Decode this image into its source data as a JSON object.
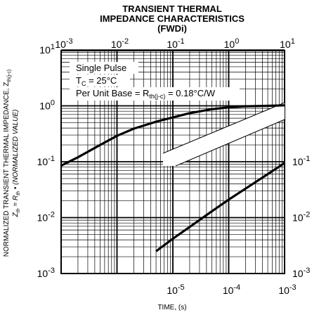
{
  "chart_data": {
    "type": "line",
    "title_lines": [
      "TRANSIENT THERMAL",
      "IMPEDANCE CHARACTERISTICS",
      "(FWDi)"
    ],
    "xlabel": "TIME, (s)",
    "ylabel_line1": "NORMALIZED TRANSIENT THERMAL IMPEDANCE, Z",
    "ylabel_line1_sub": "th(j-c)",
    "ylabel_line2": "Z",
    "ylabel_line2_sub": "th",
    "ylabel_line2_rest": " = R",
    "ylabel_line2_sub2": "th",
    "ylabel_line2_tail": " • (NORMALIZED VALUE)",
    "annotations": {
      "pulse": "Single Pulse",
      "tc_prefix": "T",
      "tc_sub": "C",
      "tc_rest": " = 25°C",
      "base_prefix": "Per Unit Base = R",
      "base_sub": "th(j-c)",
      "base_rest": " = 0.18°C/W"
    },
    "top_axis": {
      "scale": "log",
      "range": [
        0.001,
        10
      ],
      "tick_values": [
        0.001,
        0.01,
        0.1,
        1,
        10
      ],
      "tick_labels": [
        [
          "10",
          "-3"
        ],
        [
          "10",
          "-2"
        ],
        [
          "10",
          "-1"
        ],
        [
          "10",
          "0"
        ],
        [
          "10",
          "1"
        ]
      ]
    },
    "bottom_axis": {
      "scale": "log",
      "range": [
        1e-06,
        0.001
      ],
      "tick_values": [
        1e-05,
        0.0001,
        0.001
      ],
      "tick_labels": [
        [
          "10",
          "-5"
        ],
        [
          "10",
          "-4"
        ],
        [
          "10",
          "-3"
        ]
      ]
    },
    "left_axis": {
      "scale": "log",
      "range": [
        0.001,
        10
      ],
      "tick_values": [
        10,
        1,
        0.1,
        0.01,
        0.001
      ],
      "tick_labels": [
        [
          "10",
          "1"
        ],
        [
          "10",
          "0"
        ],
        [
          "10",
          "-1"
        ],
        [
          "10",
          "-2"
        ],
        [
          "10",
          "-3"
        ]
      ]
    },
    "right_axis": {
      "scale": "log",
      "range": [
        0.001,
        0.1
      ],
      "tick_values": [
        0.1,
        0.01,
        0.001
      ],
      "tick_labels": [
        [
          "10",
          "-1"
        ],
        [
          "10",
          "-2"
        ],
        [
          "10",
          "-3"
        ]
      ]
    },
    "grid": true,
    "series": [
      {
        "axis": "top-left",
        "x": [
          0.001,
          0.002,
          0.005,
          0.01,
          0.02,
          0.05,
          0.1,
          0.2,
          0.5,
          1,
          2,
          5,
          10
        ],
        "y": [
          0.085,
          0.12,
          0.2,
          0.29,
          0.39,
          0.52,
          0.62,
          0.74,
          0.87,
          0.94,
          0.98,
          1.0,
          1.02
        ]
      },
      {
        "axis": "bottom-right",
        "x": [
          5e-06,
          1e-05,
          2e-05,
          5e-05,
          0.0001,
          0.0002,
          0.0005,
          0.001
        ],
        "y": [
          0.0025,
          0.0042,
          0.0068,
          0.013,
          0.021,
          0.033,
          0.06,
          0.095
        ]
      }
    ]
  }
}
